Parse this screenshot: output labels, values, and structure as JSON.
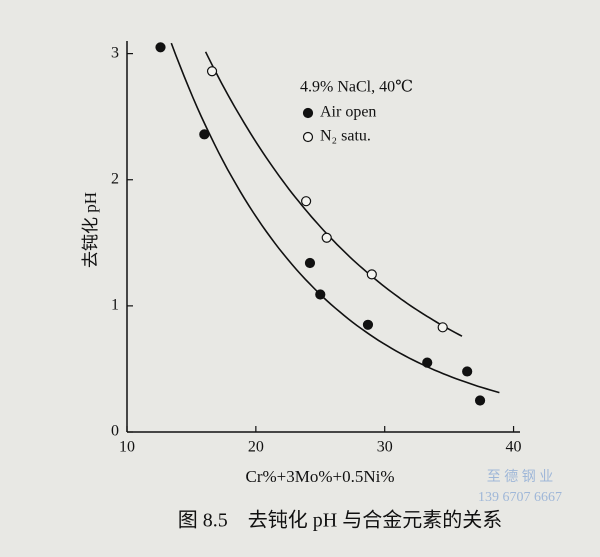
{
  "chart_data": {
    "type": "scatter",
    "title": "图 8.5　去钝化 pH 与合金元素的关系",
    "x_label": "Cr%+3Mo%+0.5Ni%",
    "y_label": "去钝化 pH",
    "legend_title": "4.9% NaCl, 40℃",
    "xlim": [
      10,
      40.5
    ],
    "ylim": [
      0,
      3.1
    ],
    "xticks": [
      10,
      20,
      30,
      40
    ],
    "yticks": [
      0,
      1,
      2,
      3
    ],
    "fit_curves": true,
    "series": [
      {
        "name": "Air open",
        "color": "#111111",
        "marker": "filled",
        "x": [
          12.6,
          16.0,
          24.2,
          25.0,
          28.7,
          33.3,
          36.4,
          37.4
        ],
        "values": [
          3.05,
          2.36,
          1.34,
          1.09,
          0.85,
          0.55,
          0.48,
          0.25
        ]
      },
      {
        "name": "N₂ satu.",
        "color": "#111111",
        "marker": "open",
        "x": [
          16.6,
          23.9,
          25.5,
          29.0,
          34.5
        ],
        "values": [
          2.86,
          1.83,
          1.54,
          1.25,
          0.83
        ]
      }
    ],
    "watermark": [
      "至 德 钢 业",
      "139 6707 6667"
    ]
  }
}
